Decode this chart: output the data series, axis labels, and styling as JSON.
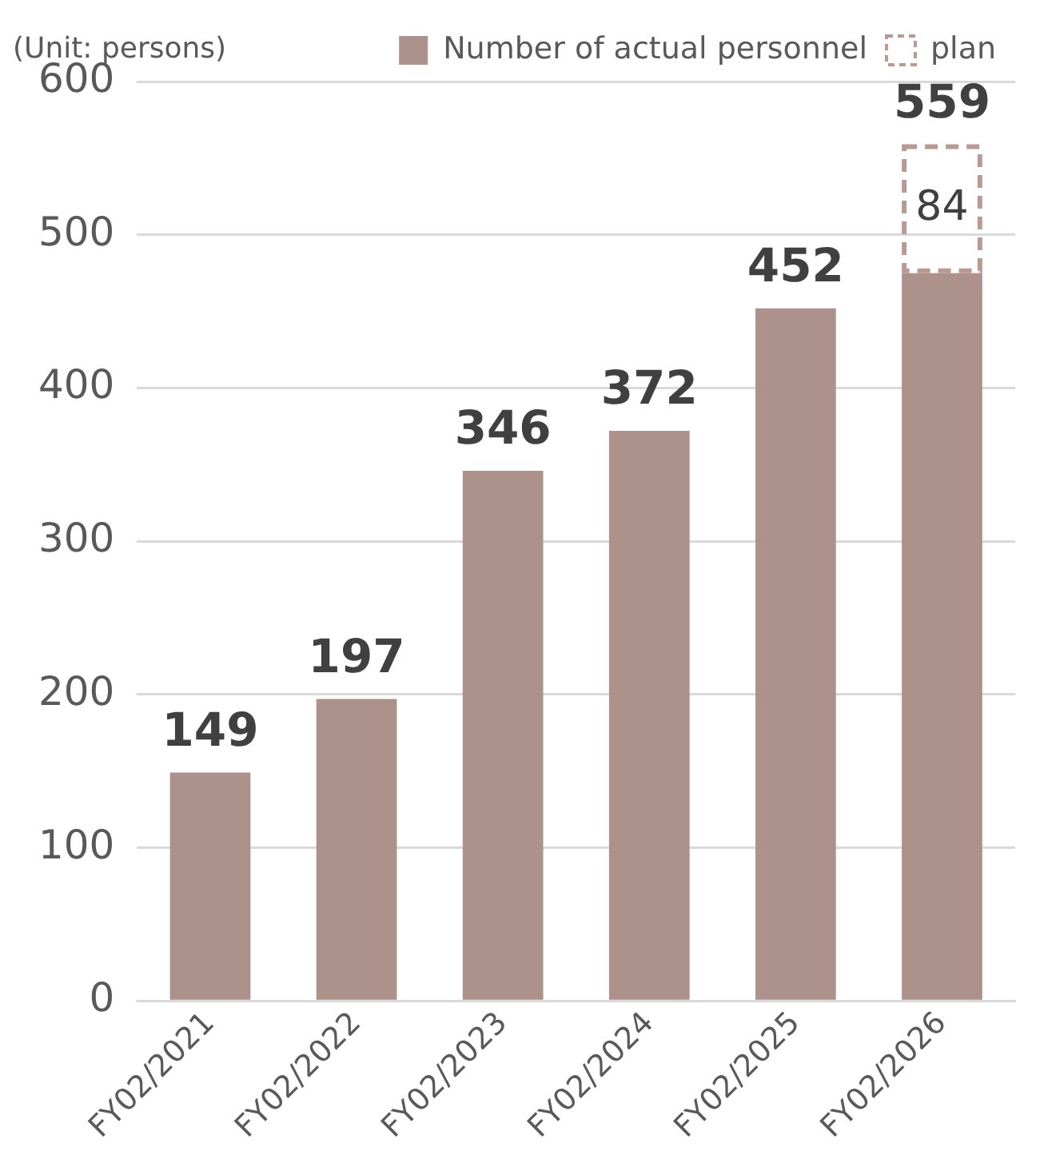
{
  "chart_data": {
    "type": "bar",
    "stacked": true,
    "categories": [
      "FY02/2021",
      "FY02/2022",
      "FY02/2023",
      "FY02/2024",
      "FY02/2025",
      "FY02/2026"
    ],
    "series": [
      {
        "name": "Number of actual personnel",
        "color": "#ad918b",
        "values": [
          149,
          197,
          346,
          372,
          452,
          475
        ]
      },
      {
        "name": "plan",
        "color": "#b89a94",
        "line_style": "dashed",
        "values": [
          null,
          null,
          null,
          null,
          null,
          84
        ],
        "value_labels": [
          null,
          null,
          null,
          null,
          null,
          "84"
        ]
      }
    ],
    "totals": [
      "149",
      "197",
      "346",
      "372",
      "452",
      "559"
    ],
    "ylim": [
      0,
      600
    ],
    "yticks": [
      0,
      100,
      200,
      300,
      400,
      500,
      600
    ],
    "grid": "y",
    "legend": "top",
    "annotations": [
      "(Unit: persons)"
    ]
  }
}
